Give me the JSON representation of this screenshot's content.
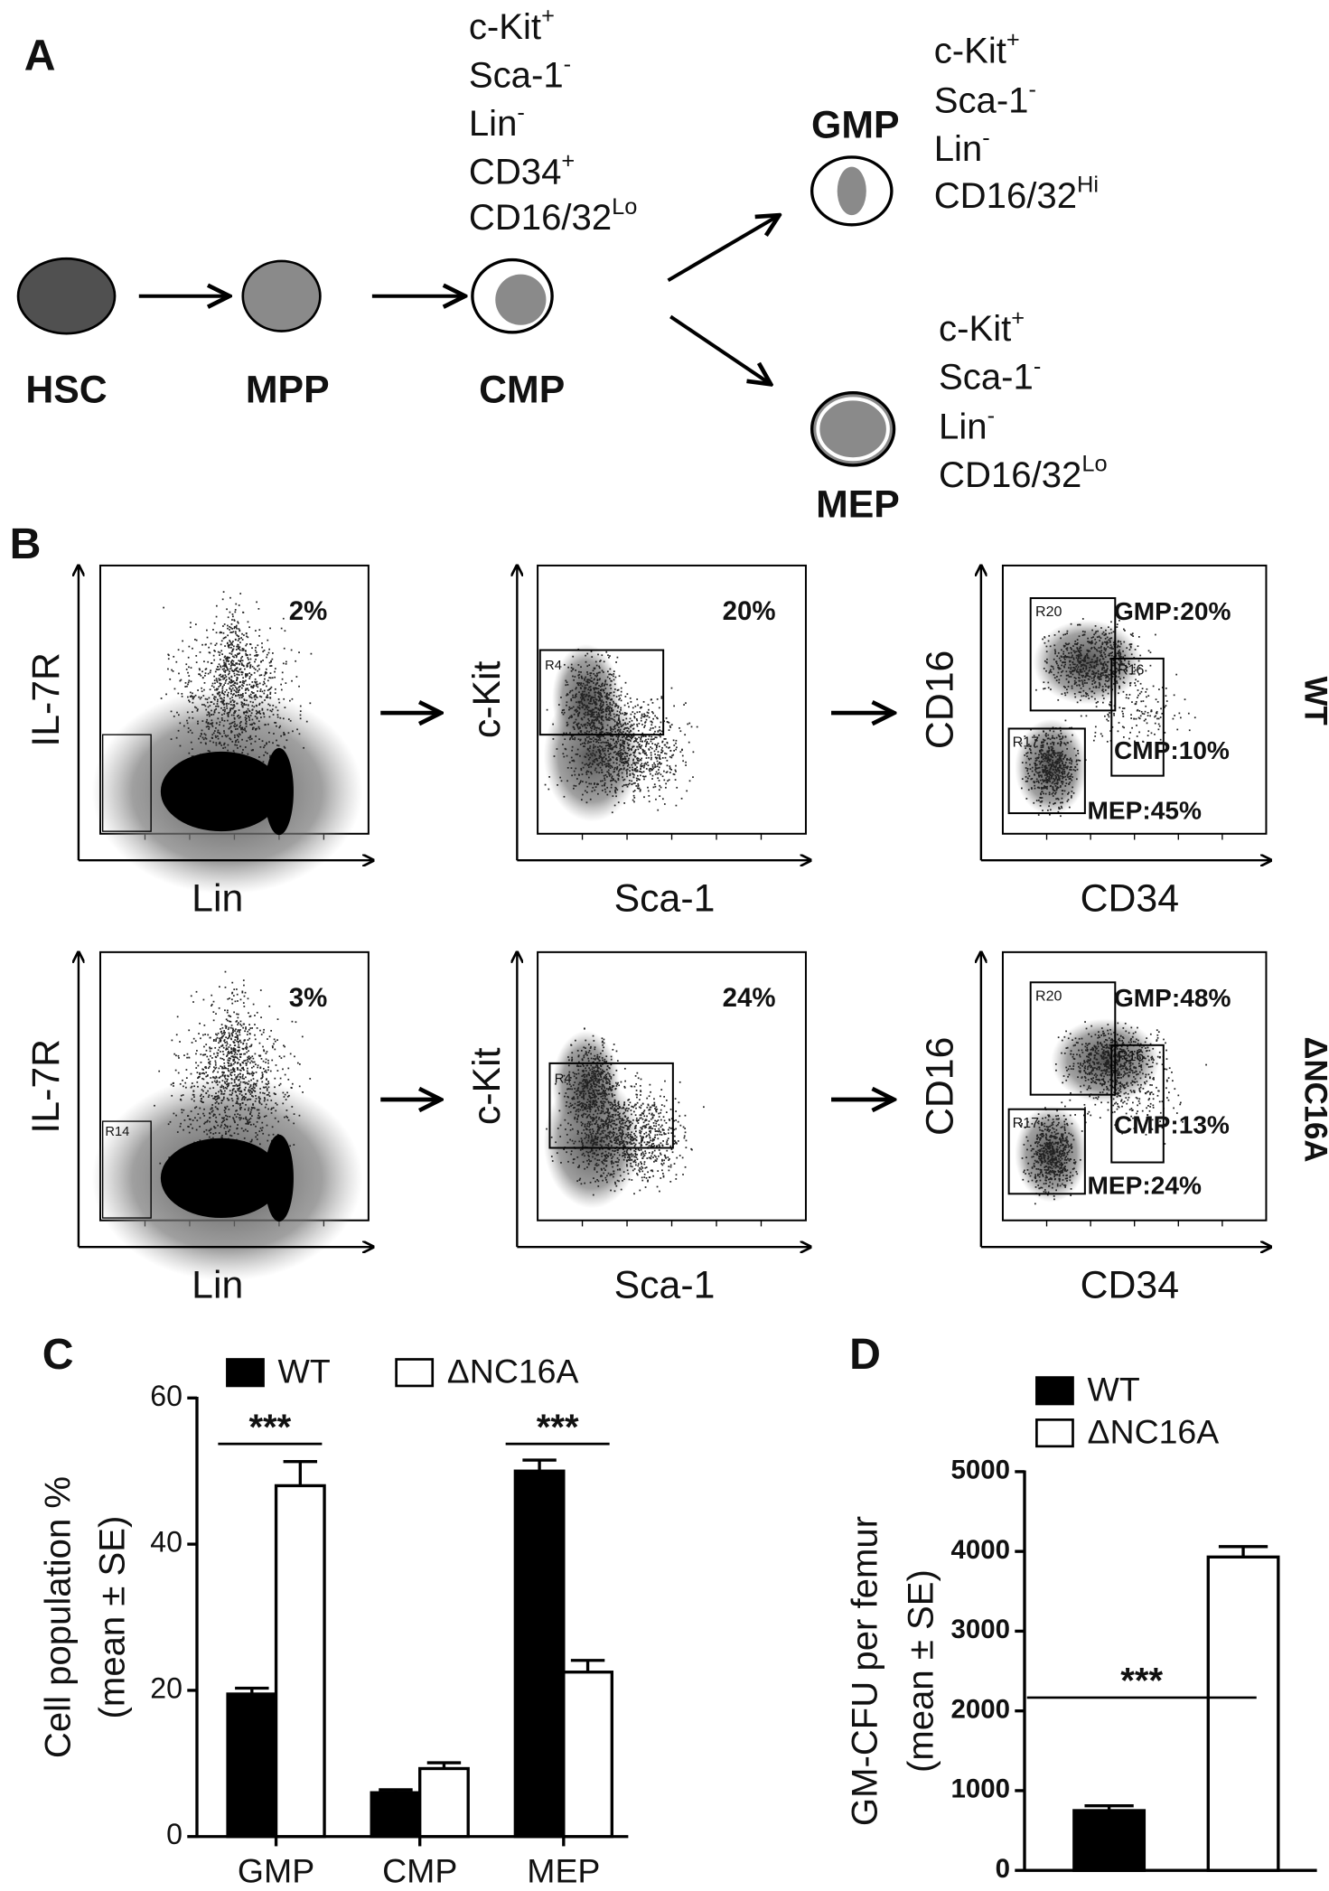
{
  "panel_a": {
    "label": "A",
    "cells": [
      "HSC",
      "MPP",
      "CMP",
      "GMP",
      "MEP"
    ],
    "cmp_markers": [
      {
        "base": "c-Kit",
        "sup": "+"
      },
      {
        "base": "Sca-1",
        "sup": "-"
      },
      {
        "base": "Lin",
        "sup": "-"
      },
      {
        "base": "CD34",
        "sup": "+"
      },
      {
        "base": "CD16/32",
        "sup": "Lo"
      }
    ],
    "gmp_markers": [
      {
        "base": "c-Kit",
        "sup": "+"
      },
      {
        "base": "Sca-1",
        "sup": "-"
      },
      {
        "base": "Lin",
        "sup": "-"
      },
      {
        "base": "CD16/32",
        "sup": "Hi"
      }
    ],
    "mep_markers": [
      {
        "base": "c-Kit",
        "sup": "+"
      },
      {
        "base": "Sca-1",
        "sup": "-"
      },
      {
        "base": "Lin",
        "sup": "-"
      },
      {
        "base": "CD16/32",
        "sup": "Lo"
      }
    ]
  },
  "panel_b": {
    "label": "B",
    "rows": [
      {
        "name": "WT",
        "plots": [
          {
            "y_label": "IL-7R",
            "x_label": "Lin",
            "percent": "2%"
          },
          {
            "y_label": "c-Kit",
            "x_label": "Sca-1",
            "percent": "20%",
            "gate": "R4"
          },
          {
            "y_label": "CD16",
            "x_label": "CD34",
            "gates": [
              "R20",
              "R16",
              "R17"
            ],
            "populations": [
              "GMP:20%",
              "CMP:10%",
              "MEP:45%"
            ]
          }
        ]
      },
      {
        "name": "ΔNC16A",
        "plots": [
          {
            "y_label": "IL-7R",
            "x_label": "Lin",
            "percent": "3%",
            "gate": "R14"
          },
          {
            "y_label": "c-Kit",
            "x_label": "Sca-1",
            "percent": "24%",
            "gate": "R4"
          },
          {
            "y_label": "CD16",
            "x_label": "CD34",
            "gates": [
              "R20",
              "R16",
              "R17"
            ],
            "populations": [
              "GMP:48%",
              "CMP:13%",
              "MEP:24%"
            ]
          }
        ]
      }
    ]
  },
  "chart_data": [
    {
      "type": "bar",
      "label": "C",
      "categories": [
        "GMP",
        "CMP",
        "MEP"
      ],
      "series": [
        {
          "name": "WT",
          "color": "#000000",
          "values": [
            19.5,
            6,
            50
          ],
          "errors": [
            0.8,
            0.4,
            1.5
          ]
        },
        {
          "name": "ΔNC16A",
          "color": "#ffffff",
          "values": [
            48,
            9.3,
            22.5
          ],
          "errors": [
            3.3,
            0.8,
            1.6
          ]
        }
      ],
      "ylabel": [
        "Cell population %",
        "(mean ± SE)"
      ],
      "ylim": [
        0,
        60
      ],
      "yticks": [
        0,
        20,
        40,
        60
      ],
      "annotations": [
        {
          "text": "***",
          "category": "GMP"
        },
        {
          "text": "***",
          "category": "MEP"
        }
      ]
    },
    {
      "type": "bar",
      "label": "D",
      "categories": [
        null
      ],
      "series": [
        {
          "name": "WT",
          "color": "#000000",
          "values": [
            750
          ],
          "errors": [
            60
          ]
        },
        {
          "name": "ΔNC16A",
          "color": "#ffffff",
          "values": [
            3930
          ],
          "errors": [
            130
          ]
        }
      ],
      "ylabel": [
        "GM-CFU per femur",
        "(mean ± SE)"
      ],
      "ylim": [
        0,
        5000
      ],
      "yticks": [
        0,
        1000,
        2000,
        3000,
        4000,
        5000
      ],
      "annotations": [
        {
          "text": "***"
        }
      ]
    }
  ]
}
